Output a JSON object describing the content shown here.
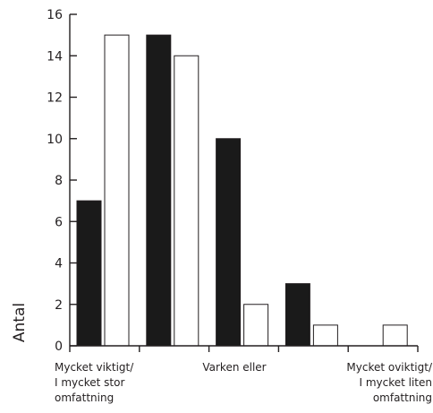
{
  "chart_data": {
    "type": "bar",
    "ylabel": "Antal",
    "ylim": [
      0,
      16
    ],
    "yticks": [
      0,
      2,
      4,
      6,
      8,
      10,
      12,
      14,
      16
    ],
    "grid": false,
    "legend": "none",
    "categories": [
      "",
      "",
      "",
      "",
      ""
    ],
    "x_annotations": [
      [
        "Mycket viktigt/",
        "I mycket stor",
        "omfattning"
      ],
      [
        "Varken eller"
      ],
      [
        "Mycket oviktigt/",
        "I mycket liten",
        "omfattning"
      ]
    ],
    "series": [
      {
        "values": [
          7,
          15,
          10,
          3,
          0
        ],
        "color": "#1a1a1a"
      },
      {
        "values": [
          15,
          14,
          2,
          1,
          1
        ],
        "color": "#ffffff"
      }
    ],
    "colors": {
      "axis": "#231f20",
      "bar_stroke": "#231f20"
    }
  }
}
